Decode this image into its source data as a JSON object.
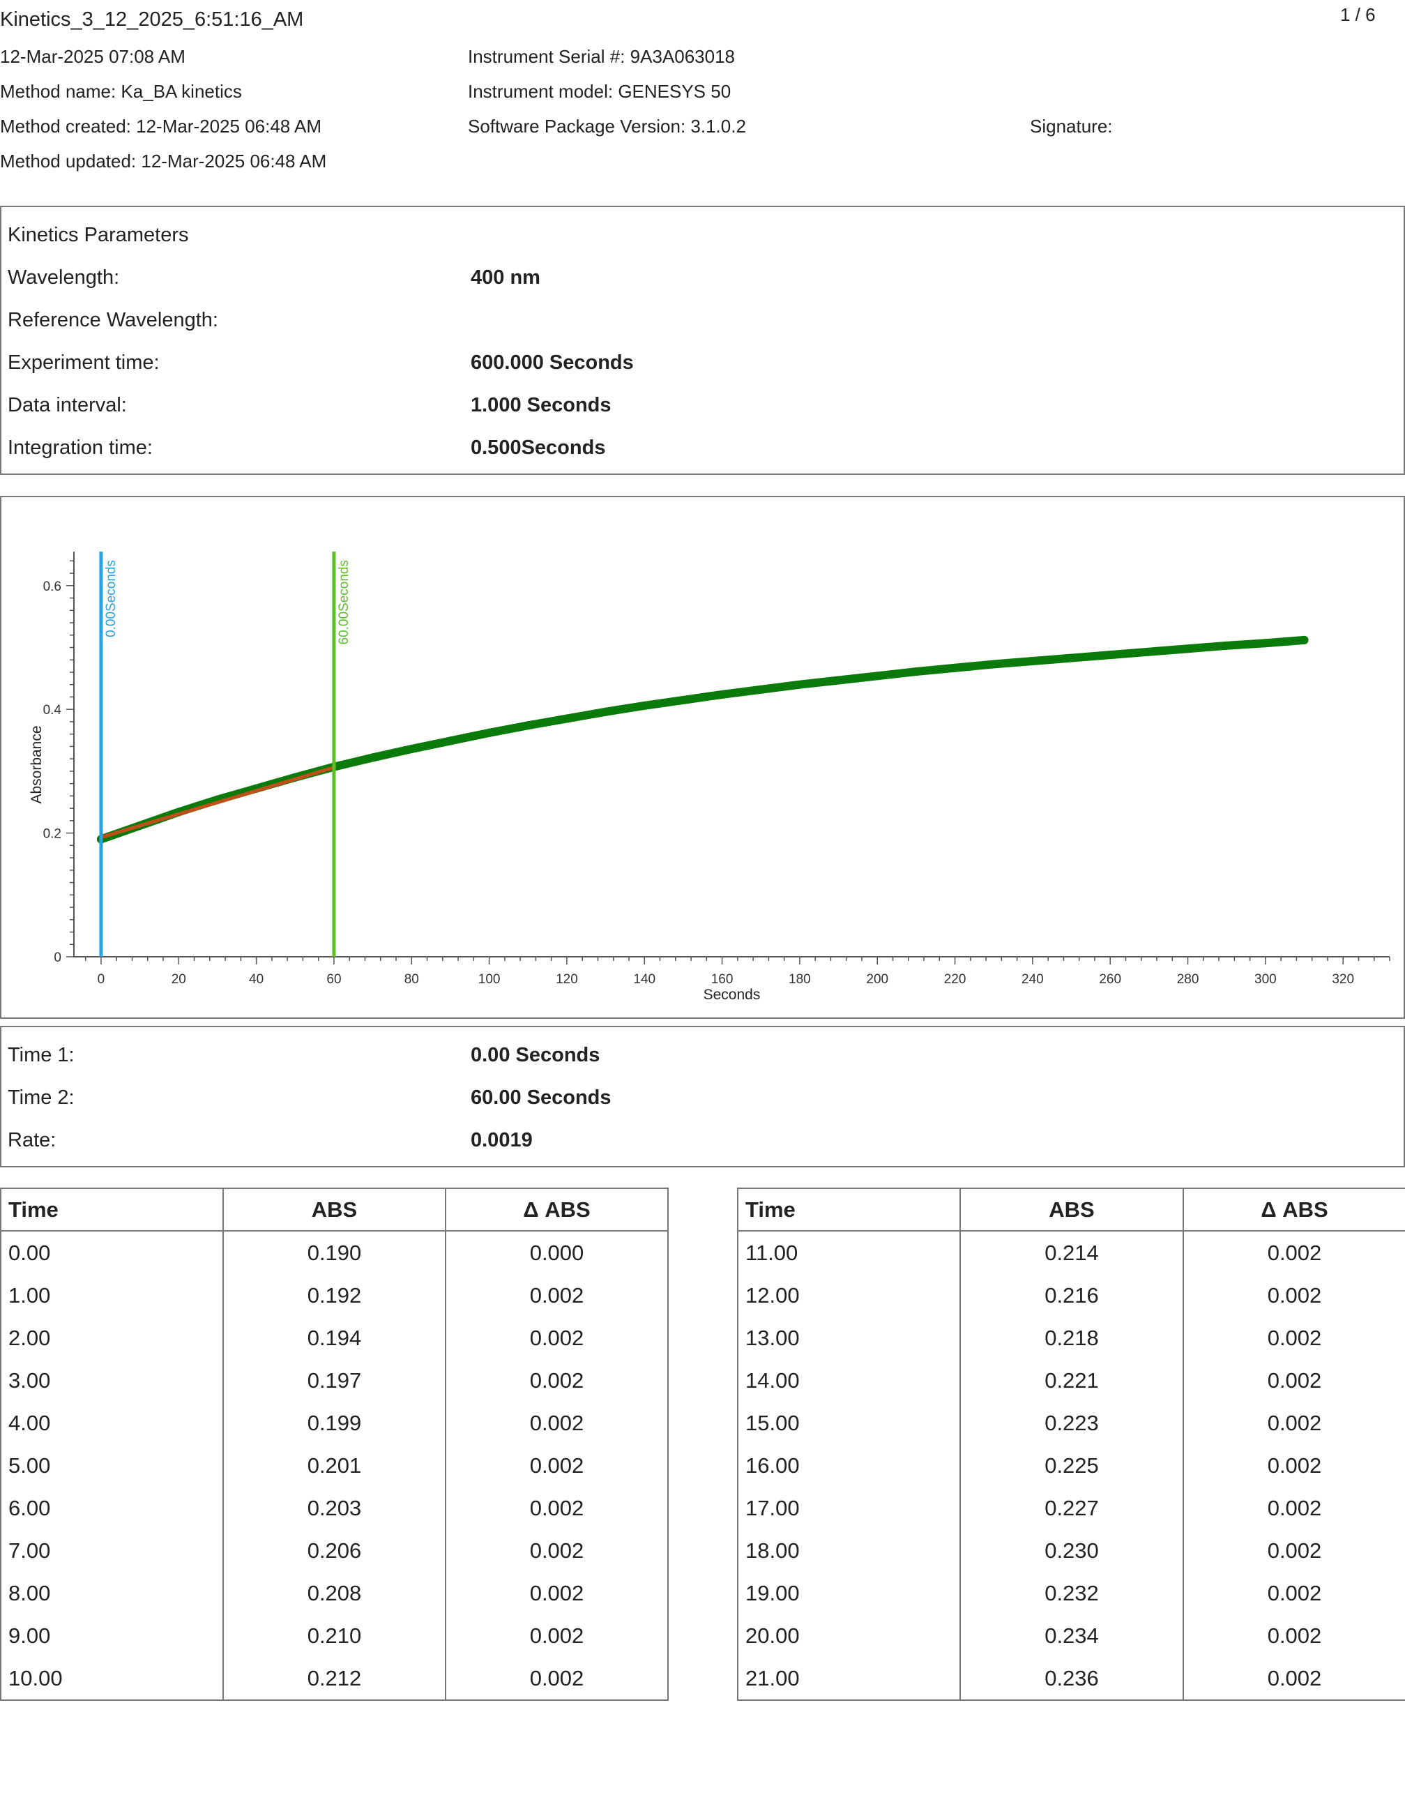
{
  "header": {
    "title": "Kinetics_3_12_2025_6:51:16_AM",
    "page": "1 / 6",
    "date": "12-Mar-2025 07:08 AM",
    "method_name": "Method name: Ka_BA kinetics",
    "method_created": "Method created: 12-Mar-2025 06:48 AM",
    "method_updated": "Method updated: 12-Mar-2025 06:48 AM",
    "serial": "Instrument Serial #: 9A3A063018",
    "model": "Instrument model: GENESYS 50",
    "software": "Software Package Version: 3.1.0.2",
    "signature": "Signature:"
  },
  "params": {
    "heading": "Kinetics Parameters",
    "rows": [
      {
        "label": "Wavelength:",
        "value": "400 nm"
      },
      {
        "label": "Reference Wavelength:",
        "value": ""
      },
      {
        "label": "Experiment time:",
        "value": "600.000 Seconds"
      },
      {
        "label": "Data interval:",
        "value": "1.000 Seconds"
      },
      {
        "label": "Integration time:",
        "value": "0.500Seconds"
      }
    ]
  },
  "results": {
    "rows": [
      {
        "label": "Time 1:",
        "value": "0.00 Seconds"
      },
      {
        "label": "Time 2:",
        "value": "60.00 Seconds"
      },
      {
        "label": "Rate:",
        "value": "0.0019"
      }
    ]
  },
  "table": {
    "headers": [
      "Time",
      "ABS",
      "Δ ABS"
    ],
    "left": [
      [
        "0.00",
        "0.190",
        "0.000"
      ],
      [
        "1.00",
        "0.192",
        "0.002"
      ],
      [
        "2.00",
        "0.194",
        "0.002"
      ],
      [
        "3.00",
        "0.197",
        "0.002"
      ],
      [
        "4.00",
        "0.199",
        "0.002"
      ],
      [
        "5.00",
        "0.201",
        "0.002"
      ],
      [
        "6.00",
        "0.203",
        "0.002"
      ],
      [
        "7.00",
        "0.206",
        "0.002"
      ],
      [
        "8.00",
        "0.208",
        "0.002"
      ],
      [
        "9.00",
        "0.210",
        "0.002"
      ],
      [
        "10.00",
        "0.212",
        "0.002"
      ]
    ],
    "right": [
      [
        "11.00",
        "0.214",
        "0.002"
      ],
      [
        "12.00",
        "0.216",
        "0.002"
      ],
      [
        "13.00",
        "0.218",
        "0.002"
      ],
      [
        "14.00",
        "0.221",
        "0.002"
      ],
      [
        "15.00",
        "0.223",
        "0.002"
      ],
      [
        "16.00",
        "0.225",
        "0.002"
      ],
      [
        "17.00",
        "0.227",
        "0.002"
      ],
      [
        "18.00",
        "0.230",
        "0.002"
      ],
      [
        "19.00",
        "0.232",
        "0.002"
      ],
      [
        "20.00",
        "0.234",
        "0.002"
      ],
      [
        "21.00",
        "0.236",
        "0.002"
      ]
    ]
  },
  "chart_data": {
    "type": "line",
    "title": "",
    "xlabel": "Seconds",
    "ylabel": "Absorbance",
    "xlim": [
      -7,
      332
    ],
    "ylim": [
      0,
      0.655
    ],
    "xticks": [
      0,
      20,
      40,
      60,
      80,
      100,
      120,
      140,
      160,
      180,
      200,
      220,
      240,
      260,
      280,
      300,
      320
    ],
    "yticks": [
      0,
      0.2,
      0.4,
      0.6
    ],
    "ytick_labels": [
      "0",
      "0.2",
      "0.4",
      "0.6"
    ],
    "grid": false,
    "series": [
      {
        "color": "#0a7a0a",
        "x": [
          0,
          10,
          20,
          30,
          40,
          50,
          60,
          70,
          80,
          90,
          100,
          110,
          120,
          130,
          140,
          150,
          160,
          170,
          180,
          190,
          200,
          210,
          220,
          230,
          240,
          250,
          260,
          270,
          280,
          290,
          300,
          310
        ],
        "y": [
          0.19,
          0.212,
          0.234,
          0.254,
          0.272,
          0.29,
          0.307,
          0.322,
          0.336,
          0.349,
          0.362,
          0.374,
          0.385,
          0.396,
          0.406,
          0.415,
          0.424,
          0.432,
          0.44,
          0.447,
          0.454,
          0.461,
          0.467,
          0.473,
          0.478,
          0.483,
          0.488,
          0.493,
          0.498,
          0.503,
          0.507,
          0.512
        ]
      },
      {
        "color": "#c0501a",
        "x": [
          0,
          60
        ],
        "y": [
          0.193,
          0.306
        ]
      }
    ],
    "markers": [
      {
        "x": 0,
        "label": "0.00Seconds",
        "color": "#29a3e0"
      },
      {
        "x": 60,
        "label": "60.00Seconds",
        "color": "#5cbf2a"
      }
    ]
  }
}
